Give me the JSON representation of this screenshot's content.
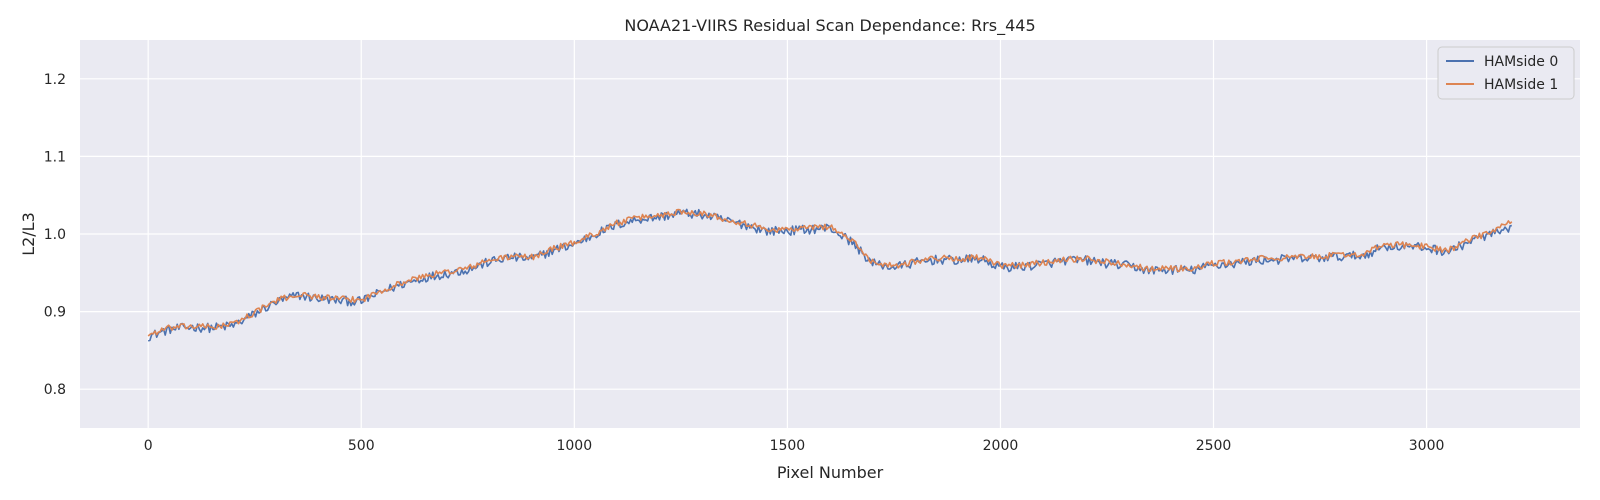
{
  "chart_data": {
    "type": "line",
    "title": "NOAA21-VIIRS Residual Scan Dependance: Rrs_445",
    "xlabel": "Pixel Number",
    "ylabel": "L2/L3",
    "xlim": [
      -160,
      3360
    ],
    "ylim": [
      0.75,
      1.25
    ],
    "xticks": [
      0,
      500,
      1000,
      1500,
      2000,
      2500,
      3000
    ],
    "yticks": [
      0.8,
      0.9,
      1.0,
      1.1,
      1.2
    ],
    "xtick_labels": [
      "0",
      "500",
      "1000",
      "1500",
      "2000",
      "2500",
      "3000"
    ],
    "ytick_labels": [
      "0.8",
      "0.9",
      "1.0",
      "1.1",
      "1.2"
    ],
    "grid": true,
    "background": "#eaeaf2",
    "legend_position": "top-right",
    "series": [
      {
        "name": "HAMside 0",
        "color": "#4c72b0",
        "x": [
          0,
          50,
          100,
          150,
          200,
          250,
          300,
          350,
          400,
          450,
          500,
          550,
          600,
          650,
          700,
          750,
          800,
          850,
          900,
          950,
          1000,
          1050,
          1100,
          1150,
          1200,
          1250,
          1300,
          1350,
          1400,
          1450,
          1500,
          1550,
          1600,
          1650,
          1700,
          1750,
          1800,
          1850,
          1900,
          1950,
          2000,
          2050,
          2100,
          2150,
          2200,
          2250,
          2300,
          2350,
          2400,
          2450,
          2500,
          2550,
          2600,
          2650,
          2700,
          2750,
          2800,
          2850,
          2900,
          2950,
          3000,
          3050,
          3100,
          3150,
          3200
        ],
        "values": [
          0.868,
          0.877,
          0.88,
          0.879,
          0.882,
          0.897,
          0.912,
          0.921,
          0.917,
          0.914,
          0.913,
          0.926,
          0.936,
          0.944,
          0.949,
          0.954,
          0.964,
          0.97,
          0.968,
          0.979,
          0.987,
          1.0,
          1.012,
          1.019,
          1.022,
          1.027,
          1.025,
          1.018,
          1.012,
          1.004,
          1.004,
          1.006,
          1.008,
          0.99,
          0.962,
          0.957,
          0.963,
          0.967,
          0.966,
          0.968,
          0.957,
          0.958,
          0.961,
          0.966,
          0.966,
          0.962,
          0.959,
          0.953,
          0.954,
          0.953,
          0.96,
          0.962,
          0.966,
          0.967,
          0.968,
          0.969,
          0.971,
          0.972,
          0.984,
          0.984,
          0.982,
          0.977,
          0.99,
          1.0,
          1.005
        ]
      },
      {
        "name": "HAMside 1",
        "color": "#dd8452",
        "x": [
          0,
          50,
          100,
          150,
          200,
          250,
          300,
          350,
          400,
          450,
          500,
          550,
          600,
          650,
          700,
          750,
          800,
          850,
          900,
          950,
          1000,
          1050,
          1100,
          1150,
          1200,
          1250,
          1300,
          1350,
          1400,
          1450,
          1500,
          1550,
          1600,
          1650,
          1700,
          1750,
          1800,
          1850,
          1900,
          1950,
          2000,
          2050,
          2100,
          2150,
          2200,
          2250,
          2300,
          2350,
          2400,
          2450,
          2500,
          2550,
          2600,
          2650,
          2700,
          2750,
          2800,
          2850,
          2900,
          2950,
          3000,
          3050,
          3100,
          3150,
          3200
        ],
        "values": [
          0.87,
          0.879,
          0.881,
          0.88,
          0.884,
          0.899,
          0.914,
          0.922,
          0.919,
          0.916,
          0.915,
          0.928,
          0.938,
          0.946,
          0.951,
          0.956,
          0.966,
          0.971,
          0.97,
          0.981,
          0.989,
          1.001,
          1.014,
          1.021,
          1.024,
          1.029,
          1.027,
          1.02,
          1.014,
          1.006,
          1.006,
          1.008,
          1.01,
          0.992,
          0.964,
          0.959,
          0.965,
          0.969,
          0.968,
          0.97,
          0.959,
          0.96,
          0.963,
          0.968,
          0.968,
          0.964,
          0.961,
          0.955,
          0.956,
          0.955,
          0.962,
          0.964,
          0.968,
          0.969,
          0.97,
          0.971,
          0.973,
          0.974,
          0.986,
          0.986,
          0.984,
          0.979,
          0.992,
          1.003,
          1.015
        ]
      }
    ]
  }
}
